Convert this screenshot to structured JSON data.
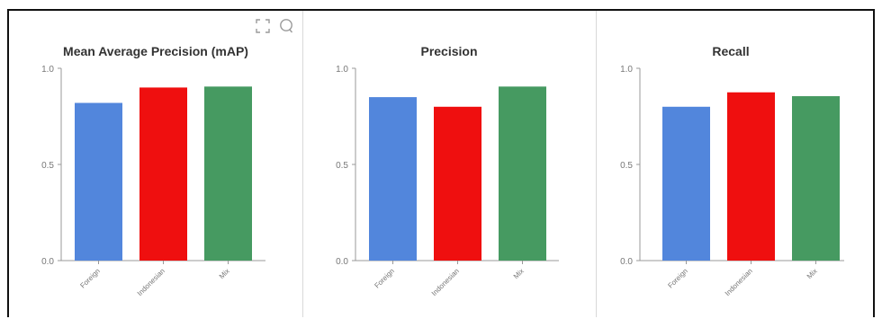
{
  "colors": {
    "foreign": "#5286dc",
    "indonesian": "#ef0f0f",
    "mix": "#469a61",
    "axis": "#999999",
    "tick_text": "#777777",
    "title_text": "#333333"
  },
  "toolbar": {
    "icons": [
      "expand-icon",
      "comment-icon"
    ]
  },
  "chart_data": [
    {
      "type": "bar",
      "title": "Mean Average Precision (mAP)",
      "categories": [
        "Foreign",
        "Indonesian",
        "Mix"
      ],
      "values": [
        0.82,
        0.9,
        0.905
      ],
      "ylim": [
        0,
        1
      ],
      "yticks": [
        "0.0",
        "0.5",
        "1.0"
      ],
      "xlabel": "",
      "ylabel": "",
      "grid": false
    },
    {
      "type": "bar",
      "title": "Precision",
      "categories": [
        "Foreign",
        "Indonesian",
        "Mix"
      ],
      "values": [
        0.85,
        0.8,
        0.905
      ],
      "ylim": [
        0,
        1
      ],
      "yticks": [
        "0.0",
        "0.5",
        "1.0"
      ],
      "xlabel": "",
      "ylabel": "",
      "grid": false
    },
    {
      "type": "bar",
      "title": "Recall",
      "categories": [
        "Foreign",
        "Indonesian",
        "Mix"
      ],
      "values": [
        0.8,
        0.875,
        0.855
      ],
      "ylim": [
        0,
        1
      ],
      "yticks": [
        "0.0",
        "0.5",
        "1.0"
      ],
      "xlabel": "",
      "ylabel": "",
      "grid": false
    }
  ]
}
